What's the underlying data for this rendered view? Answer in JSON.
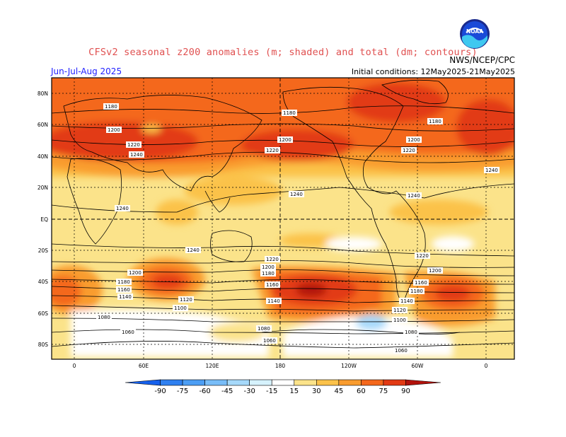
{
  "title": "CFSv2 seasonal z200 anomalies (m; shaded) and total (dm; contours)",
  "season": "Jun-Jul-Aug 2025",
  "agency": "NWS/NCEP/CPC",
  "initial_conditions": "Initial conditions: 12May2025-21May2025",
  "logo_text": "NOAA",
  "lat_ticks": [
    "80N",
    "60N",
    "40N",
    "20N",
    "EQ",
    "20S",
    "40S",
    "60S",
    "80S"
  ],
  "lon_ticks": [
    "0",
    "60E",
    "120E",
    "180",
    "120W",
    "60W",
    "0"
  ],
  "colorbar": {
    "labels": [
      "-90",
      "-75",
      "-60",
      "-45",
      "-30",
      "-15",
      "15",
      "30",
      "45",
      "60",
      "75",
      "90"
    ],
    "colors": [
      "#1560ec",
      "#2f80f0",
      "#4c9ef4",
      "#78bdf8",
      "#a6d9fa",
      "#d6f2fd",
      "#ffffff",
      "#fbe38a",
      "#fbc24a",
      "#f99c2e",
      "#f4671c",
      "#e23a14",
      "#b2120c"
    ]
  },
  "contour_labels": [
    {
      "text": "1180"
    },
    {
      "text": "1200"
    },
    {
      "text": "1220"
    },
    {
      "text": "1240"
    },
    {
      "text": "1180"
    },
    {
      "text": "1200"
    },
    {
      "text": "1220"
    },
    {
      "text": "1180"
    },
    {
      "text": "1200"
    },
    {
      "text": "1220"
    },
    {
      "text": "1240"
    },
    {
      "text": "1240"
    },
    {
      "text": "1240"
    },
    {
      "text": "1240"
    },
    {
      "text": "1240"
    },
    {
      "text": "1220"
    },
    {
      "text": "1220"
    },
    {
      "text": "1200"
    },
    {
      "text": "1180"
    },
    {
      "text": "1160"
    },
    {
      "text": "1140"
    },
    {
      "text": "1200"
    },
    {
      "text": "1180"
    },
    {
      "text": "1160"
    },
    {
      "text": "1140"
    },
    {
      "text": "1120"
    },
    {
      "text": "1100"
    },
    {
      "text": "1080"
    },
    {
      "text": "1060"
    },
    {
      "text": "1080"
    },
    {
      "text": "1060"
    },
    {
      "text": "1200"
    },
    {
      "text": "1180"
    },
    {
      "text": "1160"
    },
    {
      "text": "1140"
    },
    {
      "text": "1120"
    },
    {
      "text": "1100"
    },
    {
      "text": "1080"
    },
    {
      "text": "1060"
    }
  ]
}
